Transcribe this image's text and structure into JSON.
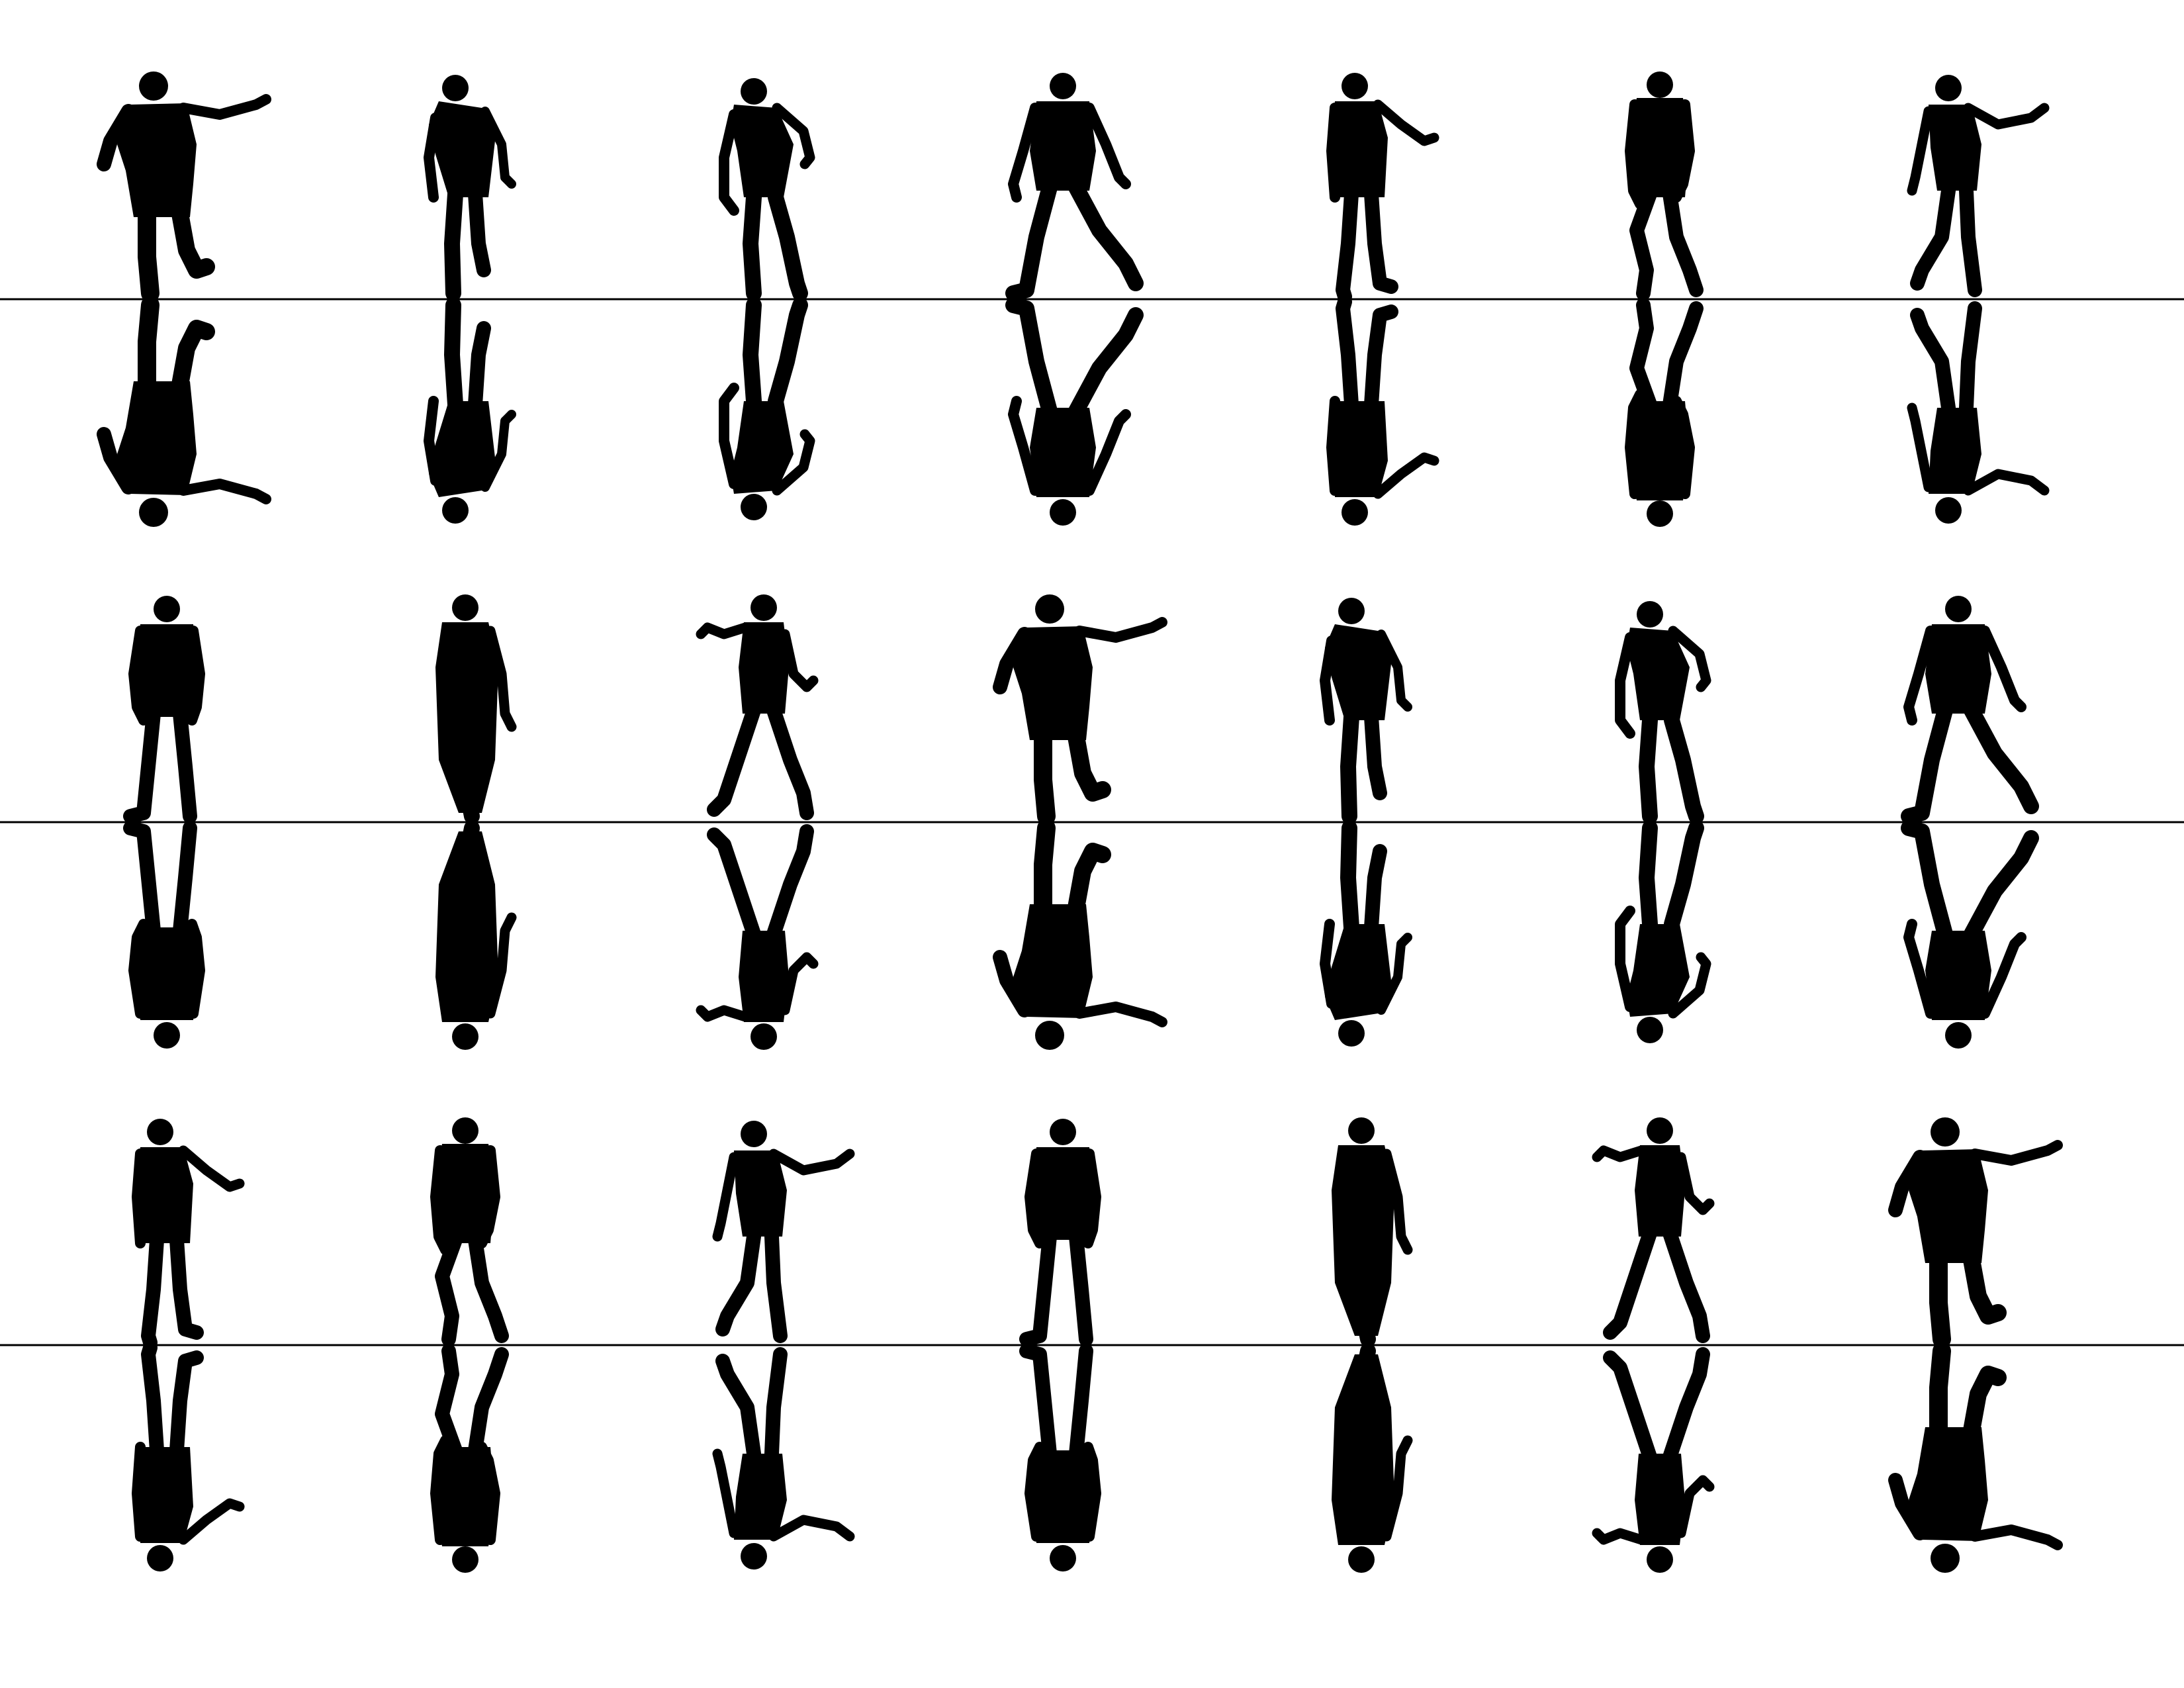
{
  "sheet": {
    "background": "#ffffff",
    "ink": "#000000",
    "rule_color": "#000000",
    "columns": 7,
    "bands": [
      {
        "name": "band-1",
        "figures": [
          {
            "pose": "reaching-right"
          },
          {
            "pose": "hunched-slouch"
          },
          {
            "pose": "limping-lean"
          },
          {
            "pose": "wide-stance"
          },
          {
            "pose": "suit-reaching"
          },
          {
            "pose": "tattered-walker"
          },
          {
            "pose": "arm-outstretched"
          }
        ]
      },
      {
        "name": "band-2",
        "figures": [
          {
            "pose": "tattered-standing"
          },
          {
            "pose": "long-coat"
          },
          {
            "pose": "claw-raised"
          },
          {
            "pose": "reaching-right"
          },
          {
            "pose": "hunched-slouch"
          },
          {
            "pose": "limping-lean"
          },
          {
            "pose": "wide-stance"
          }
        ]
      },
      {
        "name": "band-3",
        "figures": [
          {
            "pose": "suit-reaching"
          },
          {
            "pose": "tattered-walker"
          },
          {
            "pose": "arm-outstretched"
          },
          {
            "pose": "tattered-standing"
          },
          {
            "pose": "long-coat"
          },
          {
            "pose": "claw-raised"
          },
          {
            "pose": "reaching-right"
          }
        ]
      }
    ]
  }
}
